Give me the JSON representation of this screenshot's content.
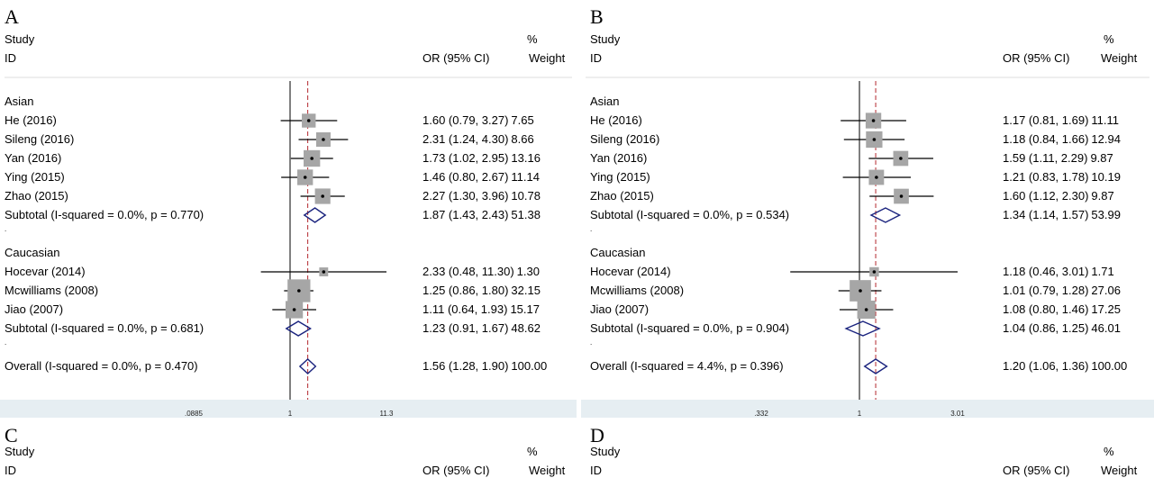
{
  "colors": {
    "box": "#a6a6a6",
    "diamond": "#1a237e",
    "null_line": "#000000",
    "overall_line": "#b3282e",
    "axis_band": "#e6eef2"
  },
  "headers": {
    "study": "Study",
    "id": "ID",
    "or": "OR (95% CI)",
    "pct": "%",
    "weight": "Weight"
  },
  "panels": [
    {
      "letter": "A",
      "ticks": [
        ".0885",
        "1",
        "11.3"
      ],
      "rows": [
        {
          "type": "group",
          "label": "Asian"
        },
        {
          "type": "study",
          "label": "He (2016)",
          "or": 1.6,
          "lo": 0.79,
          "hi": 3.27,
          "ci": "1.60 (0.79, 3.27)",
          "weight": "7.65"
        },
        {
          "type": "study",
          "label": "Sileng (2016)",
          "or": 2.31,
          "lo": 1.24,
          "hi": 4.3,
          "ci": "2.31 (1.24, 4.30)",
          "weight": "8.66"
        },
        {
          "type": "study",
          "label": "Yan (2016)",
          "or": 1.73,
          "lo": 1.02,
          "hi": 2.95,
          "ci": "1.73 (1.02, 2.95)",
          "weight": "13.16"
        },
        {
          "type": "study",
          "label": "Ying (2015)",
          "or": 1.46,
          "lo": 0.8,
          "hi": 2.67,
          "ci": "1.46 (0.80, 2.67)",
          "weight": "11.14"
        },
        {
          "type": "study",
          "label": "Zhao (2015)",
          "or": 2.27,
          "lo": 1.3,
          "hi": 3.96,
          "ci": "2.27 (1.30, 3.96)",
          "weight": "10.78"
        },
        {
          "type": "subtotal",
          "label": "Subtotal  (I-squared = 0.0%, p = 0.770)",
          "or": 1.87,
          "lo": 1.43,
          "hi": 2.43,
          "ci": "1.87 (1.43, 2.43)",
          "weight": "51.38"
        },
        {
          "type": "dot"
        },
        {
          "type": "group",
          "label": "Caucasian"
        },
        {
          "type": "study",
          "label": "Hocevar (2014)",
          "or": 2.33,
          "lo": 0.48,
          "hi": 11.3,
          "ci": "2.33 (0.48, 11.30)",
          "weight": "1.30"
        },
        {
          "type": "study",
          "label": "Mcwilliams (2008)",
          "or": 1.25,
          "lo": 0.86,
          "hi": 1.8,
          "ci": "1.25 (0.86, 1.80)",
          "weight": "32.15"
        },
        {
          "type": "study",
          "label": "Jiao (2007)",
          "or": 1.11,
          "lo": 0.64,
          "hi": 1.93,
          "ci": "1.11 (0.64, 1.93)",
          "weight": "15.17"
        },
        {
          "type": "subtotal",
          "label": "Subtotal  (I-squared = 0.0%, p = 0.681)",
          "or": 1.23,
          "lo": 0.91,
          "hi": 1.67,
          "ci": "1.23 (0.91, 1.67)",
          "weight": "48.62"
        },
        {
          "type": "dot"
        },
        {
          "type": "overall",
          "label": "Overall  (I-squared = 0.0%, p = 0.470)",
          "or": 1.56,
          "lo": 1.28,
          "hi": 1.9,
          "ci": "1.56 (1.28, 1.90)",
          "weight": "100.00"
        }
      ]
    },
    {
      "letter": "B",
      "ticks": [
        ".332",
        "1",
        "3.01"
      ],
      "rows": [
        {
          "type": "group",
          "label": "Asian"
        },
        {
          "type": "study",
          "label": "He (2016)",
          "or": 1.17,
          "lo": 0.81,
          "hi": 1.69,
          "ci": "1.17 (0.81, 1.69)",
          "weight": "11.11"
        },
        {
          "type": "study",
          "label": "Sileng (2016)",
          "or": 1.18,
          "lo": 0.84,
          "hi": 1.66,
          "ci": "1.18 (0.84, 1.66)",
          "weight": "12.94"
        },
        {
          "type": "study",
          "label": "Yan (2016)",
          "or": 1.59,
          "lo": 1.11,
          "hi": 2.29,
          "ci": "1.59 (1.11, 2.29)",
          "weight": "9.87"
        },
        {
          "type": "study",
          "label": "Ying (2015)",
          "or": 1.21,
          "lo": 0.83,
          "hi": 1.78,
          "ci": "1.21 (0.83, 1.78)",
          "weight": "10.19"
        },
        {
          "type": "study",
          "label": "Zhao (2015)",
          "or": 1.6,
          "lo": 1.12,
          "hi": 2.3,
          "ci": "1.60 (1.12, 2.30)",
          "weight": "9.87"
        },
        {
          "type": "subtotal",
          "label": "Subtotal  (I-squared = 0.0%, p = 0.534)",
          "or": 1.34,
          "lo": 1.14,
          "hi": 1.57,
          "ci": "1.34 (1.14, 1.57)",
          "weight": "53.99"
        },
        {
          "type": "dot"
        },
        {
          "type": "group",
          "label": "Caucasian"
        },
        {
          "type": "study",
          "label": "Hocevar (2014)",
          "or": 1.18,
          "lo": 0.46,
          "hi": 3.01,
          "ci": "1.18 (0.46, 3.01)",
          "weight": "1.71"
        },
        {
          "type": "study",
          "label": "Mcwilliams (2008)",
          "or": 1.01,
          "lo": 0.79,
          "hi": 1.28,
          "ci": "1.01 (0.79, 1.28)",
          "weight": "27.06"
        },
        {
          "type": "study",
          "label": "Jiao (2007)",
          "or": 1.08,
          "lo": 0.8,
          "hi": 1.46,
          "ci": "1.08 (0.80, 1.46)",
          "weight": "17.25"
        },
        {
          "type": "subtotal",
          "label": "Subtotal  (I-squared = 0.0%, p = 0.904)",
          "or": 1.04,
          "lo": 0.86,
          "hi": 1.25,
          "ci": "1.04 (0.86, 1.25)",
          "weight": "46.01"
        },
        {
          "type": "dot"
        },
        {
          "type": "overall",
          "label": "Overall  (I-squared = 4.4%, p = 0.396)",
          "or": 1.2,
          "lo": 1.06,
          "hi": 1.36,
          "ci": "1.20 (1.06, 1.36)",
          "weight": "100.00"
        }
      ]
    }
  ],
  "lower_panels": [
    {
      "letter": "C"
    },
    {
      "letter": "D"
    }
  ],
  "chart_data": [
    {
      "type": "forest",
      "panel": "A",
      "x_scale": "log",
      "xlim": [
        0.0885,
        11.3
      ],
      "x_ticks": [
        0.0885,
        1,
        11.3
      ],
      "null_value": 1,
      "overall_reference": 1.56,
      "studies": [
        {
          "group": "Asian",
          "name": "He (2016)",
          "or": 1.6,
          "lo": 0.79,
          "hi": 3.27,
          "weight": 7.65
        },
        {
          "group": "Asian",
          "name": "Sileng (2016)",
          "or": 2.31,
          "lo": 1.24,
          "hi": 4.3,
          "weight": 8.66
        },
        {
          "group": "Asian",
          "name": "Yan (2016)",
          "or": 1.73,
          "lo": 1.02,
          "hi": 2.95,
          "weight": 13.16
        },
        {
          "group": "Asian",
          "name": "Ying (2015)",
          "or": 1.46,
          "lo": 0.8,
          "hi": 2.67,
          "weight": 11.14
        },
        {
          "group": "Asian",
          "name": "Zhao (2015)",
          "or": 2.27,
          "lo": 1.3,
          "hi": 3.96,
          "weight": 10.78
        },
        {
          "group": "Caucasian",
          "name": "Hocevar (2014)",
          "or": 2.33,
          "lo": 0.48,
          "hi": 11.3,
          "weight": 1.3
        },
        {
          "group": "Caucasian",
          "name": "Mcwilliams (2008)",
          "or": 1.25,
          "lo": 0.86,
          "hi": 1.8,
          "weight": 32.15
        },
        {
          "group": "Caucasian",
          "name": "Jiao (2007)",
          "or": 1.11,
          "lo": 0.64,
          "hi": 1.93,
          "weight": 15.17
        }
      ],
      "subtotals": [
        {
          "group": "Asian",
          "i_squared": "0.0%",
          "p": 0.77,
          "or": 1.87,
          "lo": 1.43,
          "hi": 2.43,
          "weight": 51.38
        },
        {
          "group": "Caucasian",
          "i_squared": "0.0%",
          "p": 0.681,
          "or": 1.23,
          "lo": 0.91,
          "hi": 1.67,
          "weight": 48.62
        }
      ],
      "overall": {
        "i_squared": "0.0%",
        "p": 0.47,
        "or": 1.56,
        "lo": 1.28,
        "hi": 1.9,
        "weight": 100.0
      }
    },
    {
      "type": "forest",
      "panel": "B",
      "x_scale": "log",
      "xlim": [
        0.332,
        3.01
      ],
      "x_ticks": [
        0.332,
        1,
        3.01
      ],
      "null_value": 1,
      "overall_reference": 1.2,
      "studies": [
        {
          "group": "Asian",
          "name": "He (2016)",
          "or": 1.17,
          "lo": 0.81,
          "hi": 1.69,
          "weight": 11.11
        },
        {
          "group": "Asian",
          "name": "Sileng (2016)",
          "or": 1.18,
          "lo": 0.84,
          "hi": 1.66,
          "weight": 12.94
        },
        {
          "group": "Asian",
          "name": "Yan (2016)",
          "or": 1.59,
          "lo": 1.11,
          "hi": 2.29,
          "weight": 9.87
        },
        {
          "group": "Asian",
          "name": "Ying (2015)",
          "or": 1.21,
          "lo": 0.83,
          "hi": 1.78,
          "weight": 10.19
        },
        {
          "group": "Asian",
          "name": "Zhao (2015)",
          "or": 1.6,
          "lo": 1.12,
          "hi": 2.3,
          "weight": 9.87
        },
        {
          "group": "Caucasian",
          "name": "Hocevar (2014)",
          "or": 1.18,
          "lo": 0.46,
          "hi": 3.01,
          "weight": 1.71
        },
        {
          "group": "Caucasian",
          "name": "Mcwilliams (2008)",
          "or": 1.01,
          "lo": 0.79,
          "hi": 1.28,
          "weight": 27.06
        },
        {
          "group": "Caucasian",
          "name": "Jiao (2007)",
          "or": 1.08,
          "lo": 0.8,
          "hi": 1.46,
          "weight": 17.25
        }
      ],
      "subtotals": [
        {
          "group": "Asian",
          "i_squared": "0.0%",
          "p": 0.534,
          "or": 1.34,
          "lo": 1.14,
          "hi": 1.57,
          "weight": 53.99
        },
        {
          "group": "Caucasian",
          "i_squared": "0.0%",
          "p": 0.904,
          "or": 1.04,
          "lo": 0.86,
          "hi": 1.25,
          "weight": 46.01
        }
      ],
      "overall": {
        "i_squared": "4.4%",
        "p": 0.396,
        "or": 1.2,
        "lo": 1.06,
        "hi": 1.36,
        "weight": 100.0
      }
    }
  ]
}
